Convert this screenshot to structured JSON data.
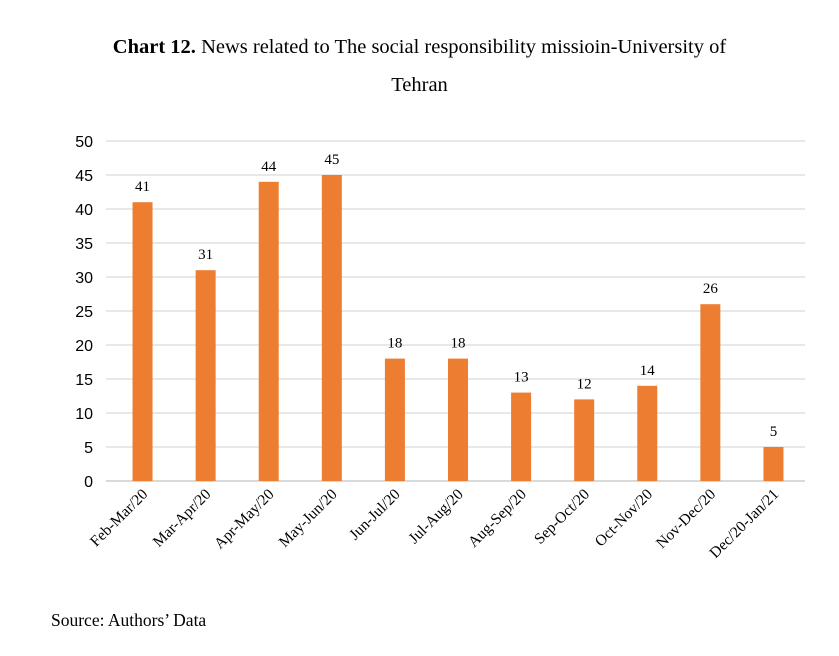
{
  "chart_data": {
    "type": "bar",
    "title_prefix": "Chart 12.",
    "title_line1": "News related to The social responsibility missioin-University of",
    "title_line2": "Tehran",
    "categories": [
      "Feb-Mar/20",
      "Mar-Apr/20",
      "Apr-May/20",
      "May-Jun/20",
      "Jun-Jul/20",
      "Jul-Aug/20",
      "Aug-Sep/20",
      "Sep-Oct/20",
      "Oct-Nov/20",
      "Nov-Dec/20",
      "Dec/20-Jan/21"
    ],
    "values": [
      41,
      31,
      44,
      45,
      18,
      18,
      13,
      12,
      14,
      26,
      5
    ],
    "yticks": [
      "0",
      "5",
      "10",
      "15",
      "20",
      "25",
      "30",
      "35",
      "40",
      "45",
      "50"
    ],
    "ylim": [
      0,
      50
    ],
    "xlabel": "",
    "ylabel": "",
    "grid": true,
    "legend": "none",
    "bar_color": "#ED7D31",
    "grid_color": "#D9D9D9"
  },
  "source": "Source: Authors’ Data"
}
